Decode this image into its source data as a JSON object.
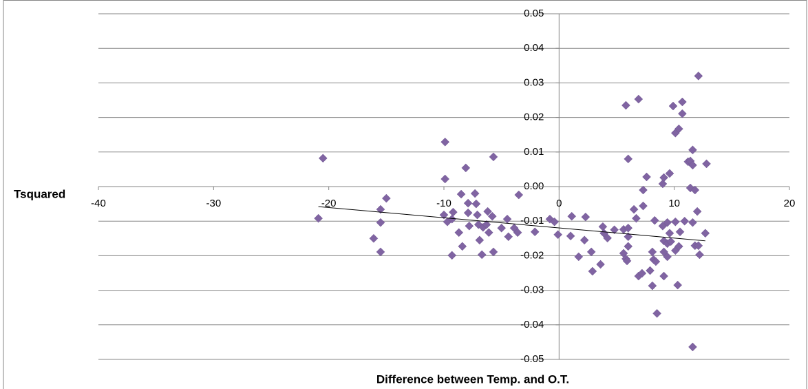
{
  "chart_data": {
    "type": "scatter",
    "x_label": "Difference between Temp. and O.T.",
    "y_label": "Tsquared",
    "xlim": [
      -40,
      20
    ],
    "xticks": [
      -40,
      -30,
      -20,
      -10,
      0,
      10,
      20
    ],
    "ylim": [
      -0.05,
      0.05
    ],
    "yticks": [
      0.05,
      0.04,
      0.03,
      0.02,
      0.01,
      {
        "value": 0,
        "label": "0.00"
      },
      -0.01,
      -0.02,
      -0.03,
      -0.04,
      -0.05
    ],
    "grid": true,
    "series": [
      {
        "color": "#8064a2",
        "x": [
          -20.5,
          -20.9,
          -16.1,
          -15.5,
          -15.5,
          -15.0,
          -15.5,
          -9.9,
          -9.9,
          -10.0,
          -9.7,
          -9.3,
          -9.2,
          -9.3,
          -8.5,
          -8.1,
          -7.9,
          -7.9,
          -7.8,
          -8.7,
          -8.4,
          -7.3,
          -7.2,
          -7.1,
          -7.0,
          -6.9,
          -6.7,
          -6.6,
          -6.3,
          -6.2,
          -5.8,
          -6.1,
          -5.7,
          -5.7,
          -5.0,
          -4.5,
          -4.4,
          -3.5,
          -3.9,
          -3.6,
          -2.1,
          -0.8,
          -0.4,
          -0.1,
          1.1,
          1.0,
          2.3,
          1.7,
          2.2,
          2.8,
          2.9,
          3.6,
          3.8,
          3.9,
          4.2,
          4.8,
          5.6,
          5.6,
          5.8,
          5.9,
          5.8,
          6.0,
          6.0,
          6.0,
          6.0,
          6.5,
          6.7,
          6.9,
          6.9,
          7.2,
          7.3,
          7.3,
          7.6,
          7.9,
          8.1,
          8.2,
          8.1,
          8.3,
          8.4,
          8.5,
          9.0,
          9.1,
          9.0,
          9.1,
          9.1,
          9.1,
          9.4,
          9.4,
          9.4,
          9.6,
          9.6,
          9.7,
          9.9,
          10.1,
          10.1,
          10.4,
          10.3,
          10.1,
          10.4,
          10.5,
          10.7,
          10.7,
          10.9,
          11.2,
          11.4,
          11.4,
          11.6,
          11.6,
          11.6,
          11.8,
          11.8,
          12.0,
          12.1,
          12.2,
          12.1,
          11.6,
          12.7,
          12.8
        ],
        "values": [
          0.0082,
          -0.0092,
          -0.015,
          -0.0104,
          -0.0066,
          -0.0034,
          -0.0189,
          0.0129,
          0.0022,
          -0.0082,
          -0.0102,
          -0.0094,
          -0.0074,
          -0.0199,
          -0.0022,
          0.0054,
          -0.0048,
          -0.0076,
          -0.0114,
          -0.0133,
          -0.0173,
          -0.002,
          -0.005,
          -0.0082,
          -0.011,
          -0.0155,
          -0.0197,
          -0.0118,
          -0.011,
          -0.0072,
          -0.0086,
          -0.0133,
          0.0086,
          -0.0189,
          -0.012,
          -0.0094,
          -0.0145,
          -0.0024,
          -0.012,
          -0.0133,
          -0.0131,
          -0.0094,
          -0.0102,
          -0.0139,
          -0.0086,
          -0.0143,
          -0.0088,
          -0.0203,
          -0.0155,
          -0.0189,
          -0.0245,
          -0.0225,
          -0.0116,
          -0.0135,
          -0.0149,
          -0.0125,
          -0.0124,
          -0.0193,
          -0.0209,
          -0.0215,
          0.0235,
          0.008,
          -0.012,
          -0.0145,
          -0.0173,
          -0.0066,
          -0.0092,
          0.0253,
          -0.0259,
          -0.0251,
          -0.001,
          -0.0056,
          0.0028,
          -0.0243,
          -0.0189,
          -0.0211,
          -0.0287,
          -0.0098,
          -0.0217,
          -0.0367,
          0.0008,
          0.0026,
          -0.0114,
          -0.0157,
          -0.0189,
          -0.0259,
          -0.0104,
          -0.0165,
          -0.0203,
          0.0038,
          -0.0135,
          -0.0159,
          0.0233,
          -0.0102,
          0.0155,
          0.0167,
          -0.0285,
          -0.0185,
          -0.0173,
          -0.0131,
          0.0245,
          0.0211,
          -0.01,
          0.0072,
          0.0074,
          -0.0004,
          0.0062,
          -0.0104,
          0.0106,
          -0.001,
          -0.0171,
          -0.0072,
          -0.0171,
          -0.0197,
          0.032,
          -0.0464,
          -0.0135,
          0.0066
        ]
      }
    ],
    "trendline": {
      "color": "#000000",
      "x": [
        -20.9,
        12.7
      ],
      "y": [
        -0.0058,
        -0.0157
      ]
    }
  }
}
